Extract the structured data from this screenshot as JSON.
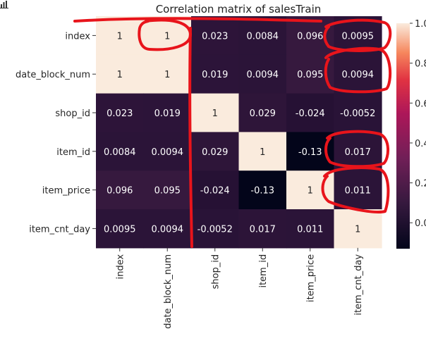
{
  "chart_data": {
    "type": "heatmap",
    "title": "Correlation matrix of salesTrain",
    "rows": [
      "index",
      "date_block_num",
      "shop_id",
      "item_id",
      "item_price",
      "item_cnt_day"
    ],
    "columns": [
      "index",
      "date_block_num",
      "shop_id",
      "item_id",
      "item_price",
      "item_cnt_day"
    ],
    "values": [
      [
        1,
        1,
        0.023,
        0.0084,
        0.096,
        0.0095
      ],
      [
        1,
        1,
        0.019,
        0.0094,
        0.095,
        0.0094
      ],
      [
        0.023,
        0.019,
        1,
        0.029,
        -0.024,
        -0.0052
      ],
      [
        0.0084,
        0.0094,
        0.029,
        1,
        -0.13,
        0.017
      ],
      [
        0.096,
        0.095,
        -0.024,
        -0.13,
        1,
        0.011
      ],
      [
        0.0095,
        0.0094,
        -0.0052,
        0.017,
        0.011,
        1
      ]
    ],
    "cell_labels": [
      [
        "1",
        "1",
        "0.023",
        "0.0084",
        "0.096",
        "0.0095"
      ],
      [
        "1",
        "1",
        "0.019",
        "0.0094",
        "0.095",
        "0.0094"
      ],
      [
        "0.023",
        "0.019",
        "1",
        "0.029",
        "-0.024",
        "-0.0052"
      ],
      [
        "0.0084",
        "0.0094",
        "0.029",
        "1",
        "-0.13",
        "0.017"
      ],
      [
        "0.096",
        "0.095",
        "-0.024",
        "-0.13",
        "1",
        "0.011"
      ],
      [
        "0.0095",
        "0.0094",
        "-0.0052",
        "0.017",
        "0.011",
        "1"
      ]
    ],
    "colormap": "rocket",
    "value_range": [
      -0.13,
      1
    ],
    "colorbar_tick_labels": [
      "1.0",
      "0.8",
      "0.6",
      "0.4",
      "0.2",
      "0.0"
    ],
    "colorbar_tick_values": [
      1.0,
      0.8,
      0.6,
      0.4,
      0.2,
      0.0
    ],
    "colors": {
      "annotation_marker": "#e8141b"
    }
  }
}
